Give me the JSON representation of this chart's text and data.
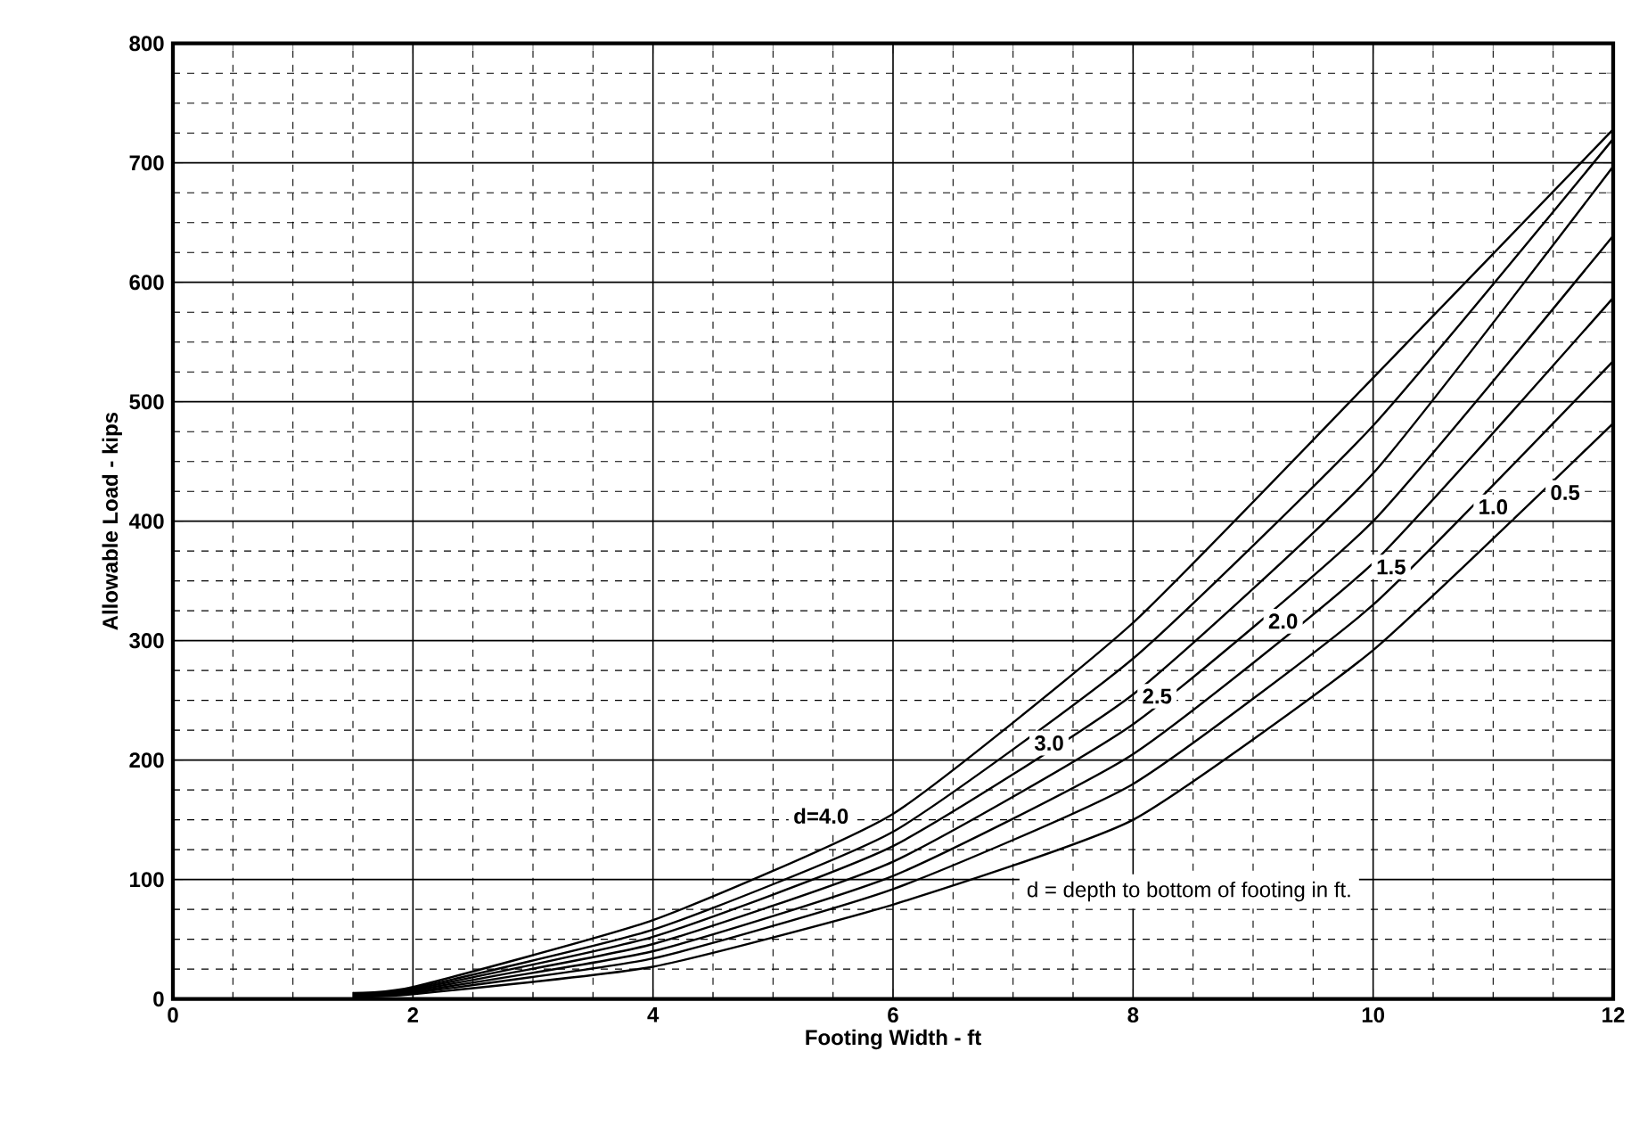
{
  "chart_data": {
    "type": "line",
    "xlabel": "Footing Width  - ft",
    "ylabel": "Allowable Load  - kips",
    "x": [
      1.5,
      2,
      4,
      6,
      8,
      10,
      12
    ],
    "series": [
      {
        "name": "d=4.0",
        "color": "#000000",
        "values": [
          5,
          10,
          66,
          155,
          315,
          520,
          728
        ]
      },
      {
        "name": "3.0",
        "color": "#000000",
        "values": [
          4,
          9,
          58,
          140,
          285,
          480,
          720
        ]
      },
      {
        "name": "2.5",
        "color": "#000000",
        "values": [
          4,
          8,
          52,
          128,
          255,
          440,
          697
        ]
      },
      {
        "name": "2.0",
        "color": "#000000",
        "values": [
          3,
          7,
          46,
          115,
          230,
          400,
          639
        ]
      },
      {
        "name": "1.5",
        "color": "#000000",
        "values": [
          3,
          6,
          40,
          103,
          205,
          365,
          587
        ]
      },
      {
        "name": "1.0",
        "color": "#000000",
        "values": [
          2,
          5,
          34,
          92,
          180,
          330,
          534
        ]
      },
      {
        "name": "0.5",
        "color": "#000000",
        "values": [
          2,
          4,
          27,
          79,
          150,
          292,
          482
        ]
      }
    ],
    "xlim": [
      0,
      12
    ],
    "ylim": [
      0,
      800
    ],
    "xticks": [
      0,
      2,
      4,
      6,
      8,
      10,
      12
    ],
    "yticks": [
      0,
      100,
      200,
      300,
      400,
      500,
      600,
      700,
      800
    ],
    "grid": true,
    "marker": "none",
    "line_style": "solid",
    "annotations": [
      "d = depth to bottom of footing in ft."
    ]
  }
}
